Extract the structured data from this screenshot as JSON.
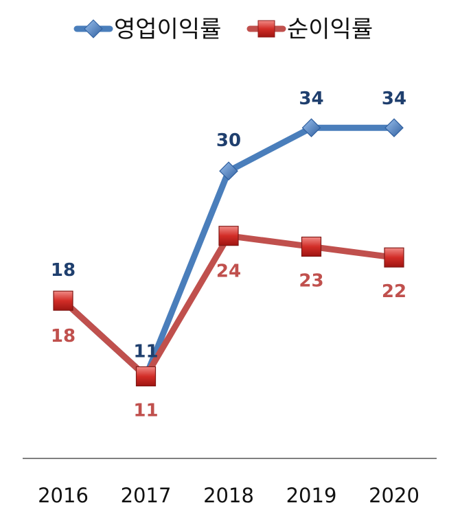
{
  "chart_data": {
    "type": "line",
    "categories": [
      "2016",
      "2017",
      "2018",
      "2019",
      "2020"
    ],
    "series": [
      {
        "name": "영업이익률",
        "values": [
          18,
          11,
          30,
          34,
          34
        ],
        "labels": [
          "18",
          "11",
          "30",
          "34",
          "34"
        ],
        "color": "#4a7ebb",
        "label_color": "#1f3f6e",
        "marker": "diamond"
      },
      {
        "name": "순이익률",
        "values": [
          18,
          11,
          24,
          23,
          22
        ],
        "labels": [
          "18",
          "11",
          "24",
          "23",
          "22"
        ],
        "color": "#c0504d",
        "label_color": "#c0504d",
        "marker": "square"
      }
    ],
    "legend_position": "top",
    "grid": false,
    "axis_color": "#7f7f7f"
  }
}
